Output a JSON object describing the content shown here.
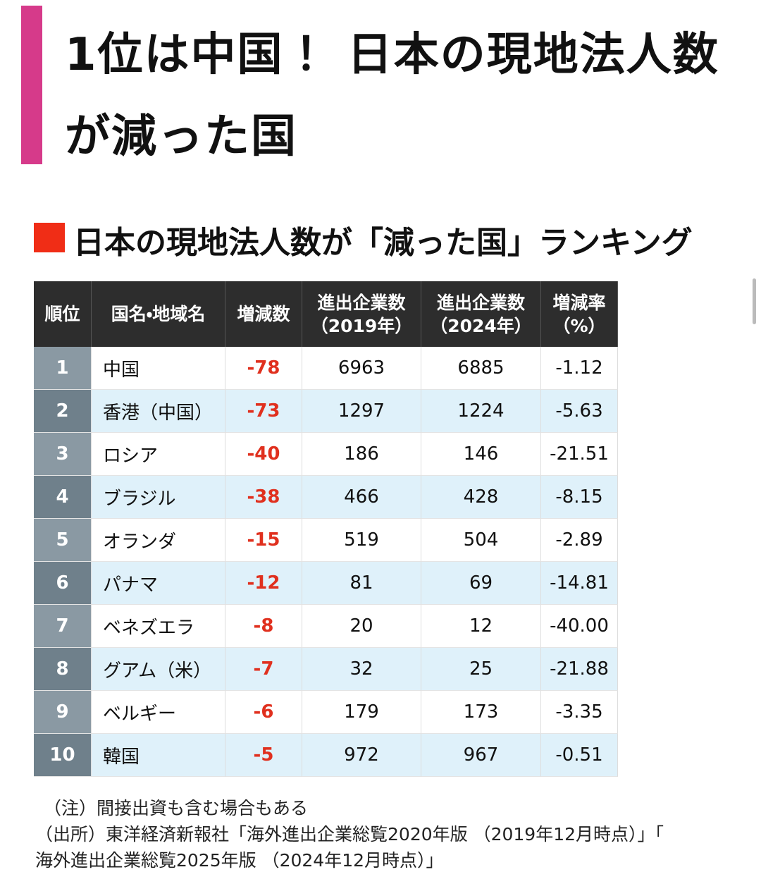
{
  "header": {
    "title_lines": [
      "1位は中国！ 日本の現地法人数",
      "が減った国"
    ]
  },
  "section": {
    "title": "日本の現地法人数が「減った国」ランキング"
  },
  "table": {
    "columns": [
      [
        "順位"
      ],
      [
        "国名・地域名"
      ],
      [
        "増減数"
      ],
      [
        "進出企業数",
        "（2019年）"
      ],
      [
        "進出企業数",
        "（2024年）"
      ],
      [
        "増減率",
        "（%）"
      ]
    ],
    "rows": [
      [
        "1",
        "中国",
        "-78",
        "6963",
        "6885",
        "-1.12"
      ],
      [
        "2",
        "香港（中国）",
        "-73",
        "1297",
        "1224",
        "-5.63"
      ],
      [
        "3",
        "ロシア",
        "-40",
        "186",
        "146",
        "-21.51"
      ],
      [
        "4",
        "ブラジル",
        "-38",
        "466",
        "428",
        "-8.15"
      ],
      [
        "5",
        "オランダ",
        "-15",
        "519",
        "504",
        "-2.89"
      ],
      [
        "6",
        "パナマ",
        "-12",
        "81",
        "69",
        "-14.81"
      ],
      [
        "7",
        "ベネズエラ",
        "-8",
        "20",
        "12",
        "-40.00"
      ],
      [
        "8",
        "グアム（米）",
        "-7",
        "32",
        "25",
        "-21.88"
      ],
      [
        "9",
        "ベルギー",
        "-6",
        "179",
        "173",
        "-3.35"
      ],
      [
        "10",
        "韓国",
        "-5",
        "972",
        "967",
        "-0.51"
      ]
    ]
  },
  "notes": [
    "（注）間接出資も含む場合もある",
    "（出所）東洋経済新報社「海外進出企業総覧2020年版 （2019年12月時点）」「",
    "海外進出企業総覧2025年版 （2024年12月時点）」"
  ]
}
